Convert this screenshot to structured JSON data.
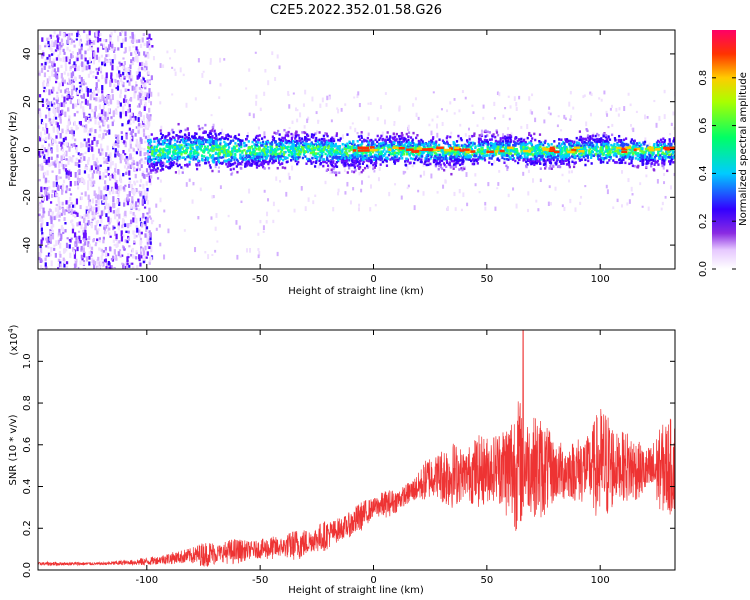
{
  "title": "C2E5.2022.352.01.58.G26",
  "chart_data": [
    {
      "type": "heatmap",
      "xlabel": "Height of straight line (km)",
      "ylabel": "Frequency (Hz)",
      "xlim": [
        -148,
        133
      ],
      "ylim": [
        -50,
        50
      ],
      "x_ticks": [
        -100,
        -50,
        0,
        50,
        100
      ],
      "y_ticks": [
        -40,
        -20,
        0,
        20,
        40
      ],
      "colorbar": {
        "label": "Normalized spectral amplitude",
        "range": [
          0,
          1
        ],
        "ticks": [
          0.0,
          0.2,
          0.4,
          0.6,
          0.8
        ],
        "colormap": [
          "#ffffff",
          "#e6c8ff",
          "#8a2be2",
          "#3300ff",
          "#00ccff",
          "#00ff66",
          "#66ff00",
          "#ffcc00",
          "#ff3300",
          "#ff0066"
        ]
      },
      "features": [
        {
          "x_range": [
            -148,
            -100
          ],
          "description_value": "broadband noise, frequency -50..50"
        },
        {
          "x_range": [
            -100,
            133
          ],
          "center_freq": 0,
          "band_halfwidth": 8
        }
      ]
    },
    {
      "type": "line",
      "xlabel": "Height of straight line (km)",
      "ylabel": "SNR (10 * v/v)",
      "scale_label": "(x10^4)",
      "scale_base": "(x10",
      "scale_exp": "4",
      "xlim": [
        -148,
        133
      ],
      "ylim": [
        0,
        1.15
      ],
      "x_ticks": [
        -100,
        -50,
        0,
        50,
        100
      ],
      "y_ticks": [
        0.0,
        0.2,
        0.4,
        0.6,
        0.8,
        1.0
      ],
      "color": "#ee3333",
      "envelope": {
        "x": [
          -148,
          -120,
          -100,
          -80,
          -60,
          -40,
          -30,
          -20,
          -10,
          0,
          10,
          20,
          25,
          40,
          50,
          55,
          60,
          66,
          70,
          80,
          90,
          100,
          110,
          120,
          125,
          133
        ],
        "base": [
          0.03,
          0.03,
          0.04,
          0.07,
          0.09,
          0.11,
          0.13,
          0.17,
          0.22,
          0.3,
          0.33,
          0.4,
          0.45,
          0.46,
          0.48,
          0.5,
          0.48,
          0.52,
          0.5,
          0.47,
          0.48,
          0.5,
          0.5,
          0.47,
          0.48,
          0.5
        ],
        "amp": [
          0.01,
          0.01,
          0.02,
          0.06,
          0.07,
          0.07,
          0.08,
          0.1,
          0.08,
          0.07,
          0.07,
          0.1,
          0.15,
          0.17,
          0.25,
          0.28,
          0.3,
          0.4,
          0.28,
          0.22,
          0.22,
          0.3,
          0.22,
          0.18,
          0.25,
          0.28
        ]
      },
      "peak": {
        "x": 66,
        "y": 1.15
      }
    }
  ]
}
